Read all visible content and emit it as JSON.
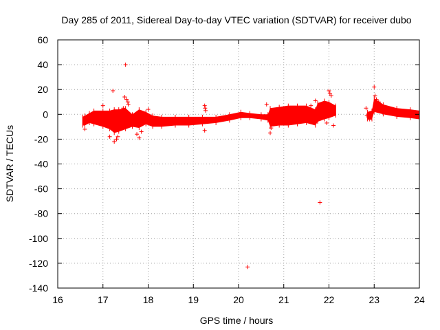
{
  "chart_data": {
    "type": "scatter",
    "title": "Day 285 of 2011, Sidereal Day-to-day VTEC variation (SDTVAR) for receiver dubo",
    "xlabel": "GPS time / hours",
    "ylabel": "SDTVAR / TECUs",
    "xlim": [
      16,
      24
    ],
    "ylim": [
      -140,
      60
    ],
    "xticks": [
      16,
      17,
      18,
      19,
      20,
      21,
      22,
      23,
      24
    ],
    "yticks": [
      60,
      40,
      20,
      0,
      -20,
      -40,
      -60,
      -80,
      -100,
      -120,
      -140
    ],
    "x_tick_labels": [
      "16",
      "17",
      "18",
      "19",
      "20",
      "21",
      "22",
      "23",
      "24"
    ],
    "y_tick_labels": [
      "60",
      "40",
      "20",
      "0",
      "-20",
      "-40",
      "-60",
      "-80",
      "-100",
      "-120",
      "-140"
    ],
    "grid": true,
    "marker": "+",
    "color": "#ff0000",
    "series": [
      {
        "name": "SDTVAR",
        "envelope": [
          {
            "x": 16.55,
            "low": -9,
            "high": -2
          },
          {
            "x": 16.6,
            "low": -9,
            "high": -1
          },
          {
            "x": 16.7,
            "low": -7,
            "high": 1
          },
          {
            "x": 16.8,
            "low": -8,
            "high": 3
          },
          {
            "x": 17.0,
            "low": -10,
            "high": 3
          },
          {
            "x": 17.15,
            "low": -12,
            "high": 3
          },
          {
            "x": 17.25,
            "low": -15,
            "high": 4
          },
          {
            "x": 17.35,
            "low": -14,
            "high": 4
          },
          {
            "x": 17.5,
            "low": -12,
            "high": 5
          },
          {
            "x": 17.65,
            "low": -10,
            "high": 0
          },
          {
            "x": 17.8,
            "low": -11,
            "high": 4
          },
          {
            "x": 17.95,
            "low": -8,
            "high": 2
          },
          {
            "x": 18.1,
            "low": -10,
            "high": -1
          },
          {
            "x": 18.3,
            "low": -10,
            "high": -2
          },
          {
            "x": 18.6,
            "low": -9,
            "high": -2
          },
          {
            "x": 18.9,
            "low": -9,
            "high": -2
          },
          {
            "x": 19.2,
            "low": -8,
            "high": -2
          },
          {
            "x": 19.5,
            "low": -7,
            "high": -2
          },
          {
            "x": 19.8,
            "low": -5,
            "high": 0
          },
          {
            "x": 20.05,
            "low": -3,
            "high": 2
          },
          {
            "x": 20.25,
            "low": -3,
            "high": 1
          },
          {
            "x": 20.5,
            "low": -4,
            "high": 0
          },
          {
            "x": 20.65,
            "low": -5,
            "high": 0
          },
          {
            "x": 20.7,
            "low": -10,
            "high": 5
          },
          {
            "x": 20.9,
            "low": -9,
            "high": 6
          },
          {
            "x": 21.1,
            "low": -9,
            "high": 7
          },
          {
            "x": 21.3,
            "low": -8,
            "high": 7
          },
          {
            "x": 21.5,
            "low": -7,
            "high": 7
          },
          {
            "x": 21.7,
            "low": -9,
            "high": 4
          },
          {
            "x": 21.75,
            "low": -6,
            "high": 9
          },
          {
            "x": 21.9,
            "low": -4,
            "high": 11
          },
          {
            "x": 22.0,
            "low": -3,
            "high": 10
          },
          {
            "x": 22.15,
            "low": -1,
            "high": 7
          },
          {
            "x": 22.16,
            "low": null,
            "high": null
          },
          {
            "x": 22.8,
            "low": null,
            "high": null
          },
          {
            "x": 22.85,
            "low": -4,
            "high": 2
          },
          {
            "x": 22.95,
            "low": -4,
            "high": 3
          },
          {
            "x": 23.0,
            "low": 2,
            "high": 13
          },
          {
            "x": 23.2,
            "low": 0,
            "high": 8
          },
          {
            "x": 23.5,
            "low": -2,
            "high": 5
          },
          {
            "x": 23.8,
            "low": -3,
            "high": 4
          },
          {
            "x": 24.0,
            "low": -4,
            "high": 3
          }
        ],
        "points": [
          [
            17.0,
            7
          ],
          [
            17.22,
            19
          ],
          [
            17.5,
            40
          ],
          [
            17.48,
            14
          ],
          [
            17.52,
            12
          ],
          [
            17.55,
            10
          ],
          [
            17.56,
            8
          ],
          [
            17.15,
            -18
          ],
          [
            17.25,
            -22
          ],
          [
            17.3,
            -20
          ],
          [
            17.33,
            -18
          ],
          [
            17.75,
            -16
          ],
          [
            17.8,
            -19
          ],
          [
            17.85,
            -14
          ],
          [
            19.25,
            7
          ],
          [
            19.26,
            5
          ],
          [
            19.27,
            3
          ],
          [
            19.25,
            -13
          ],
          [
            20.2,
            -123
          ],
          [
            20.62,
            8
          ],
          [
            20.7,
            -15
          ],
          [
            20.72,
            -11
          ],
          [
            21.6,
            7
          ],
          [
            21.7,
            11
          ],
          [
            21.8,
            -71
          ],
          [
            21.95,
            -7
          ],
          [
            22.0,
            19
          ],
          [
            22.02,
            17
          ],
          [
            22.05,
            15
          ],
          [
            22.1,
            -9
          ],
          [
            22.82,
            5
          ],
          [
            22.84,
            -1
          ],
          [
            22.9,
            -4
          ],
          [
            23.0,
            22
          ],
          [
            23.02,
            15
          ],
          [
            23.05,
            12
          ],
          [
            23.1,
            10
          ],
          [
            16.6,
            -12
          ],
          [
            18.0,
            4
          ],
          [
            17.45,
            5
          ]
        ]
      }
    ]
  }
}
